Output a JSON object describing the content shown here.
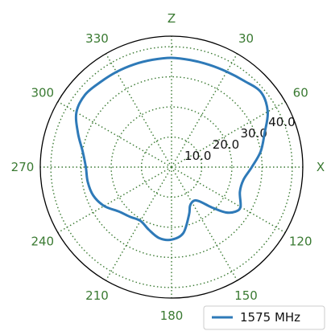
{
  "chart_data": {
    "type": "polar-line",
    "angle_labels": [
      {
        "deg": 0,
        "label": "Z"
      },
      {
        "deg": 30,
        "label": "30"
      },
      {
        "deg": 60,
        "label": "60"
      },
      {
        "deg": 90,
        "label": "X"
      },
      {
        "deg": 120,
        "label": "120"
      },
      {
        "deg": 150,
        "label": "150"
      },
      {
        "deg": 180,
        "label": "180"
      },
      {
        "deg": 210,
        "label": "210"
      },
      {
        "deg": 240,
        "label": "240"
      },
      {
        "deg": 270,
        "label": "270"
      },
      {
        "deg": 300,
        "label": "300"
      },
      {
        "deg": 330,
        "label": "330"
      }
    ],
    "radial_ticks": [
      10.0,
      20.0,
      30.0,
      40.0
    ],
    "radial_tick_labels": [
      "10.0",
      "20.0",
      "30.0",
      "40.0"
    ],
    "rlim": [
      0,
      43.5
    ],
    "angle_zero": "top",
    "angle_direction": "clockwise",
    "grid": true,
    "legend_position": "bottom-right",
    "series": [
      {
        "name": "1575 MHz",
        "color": "#2e7ab8",
        "theta_deg": [
          0,
          10,
          20,
          30,
          40,
          50,
          60,
          70,
          80,
          90,
          100,
          110,
          120,
          125,
          130,
          135,
          140,
          145,
          150,
          155,
          160,
          170,
          180,
          190,
          200,
          210,
          220,
          230,
          240,
          250,
          260,
          270,
          280,
          290,
          300,
          310,
          320,
          330,
          340,
          350,
          360
        ],
        "r": [
          36.3,
          36.1,
          36.2,
          36.6,
          37.4,
          38.7,
          36.8,
          32.8,
          30.0,
          26.6,
          24.2,
          24.1,
          26.4,
          25.8,
          23.4,
          19.0,
          15.1,
          13.5,
          13.5,
          14.4,
          16.9,
          22.3,
          24.1,
          23.9,
          22.1,
          20.6,
          21.5,
          22.9,
          25.8,
          27.6,
          28.2,
          28.4,
          29.9,
          33.0,
          36.4,
          37.4,
          36.8,
          36.5,
          36.3,
          36.2,
          36.3
        ]
      }
    ],
    "colors": {
      "grid": "#3a7a32",
      "angle_labels": "#3a7a32",
      "outer_circle": "#000000"
    }
  }
}
